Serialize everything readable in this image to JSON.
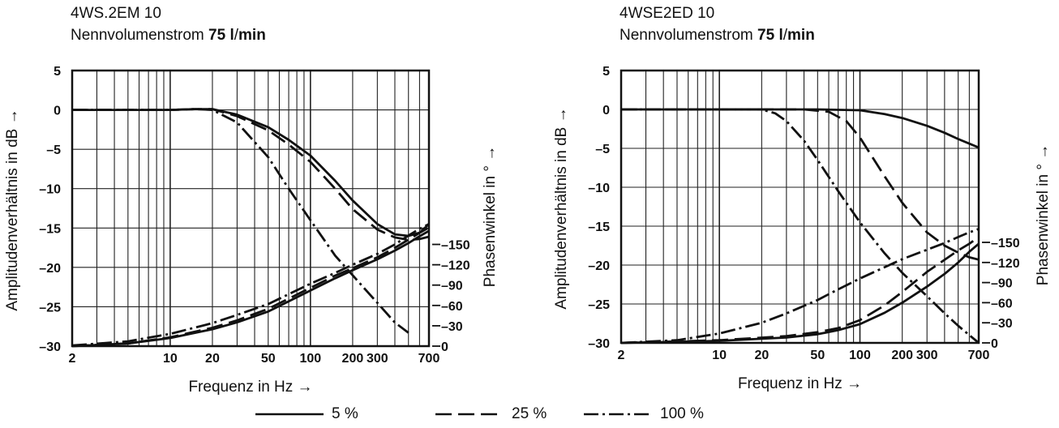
{
  "chart_data": [
    {
      "type": "line",
      "title_line1": "4WS.2EM 10",
      "title_line2_prefix": "Nennvolumenstrom ",
      "title_line2_bold": "75 l",
      "title_line2_sep": "/",
      "title_line2_bold2": "min",
      "xlabel": "Frequenz in Hz →",
      "ylabel": "Amplitudenverhältnis in dB →",
      "y2label": "Phasenwinkel in ° →",
      "xscale": "log",
      "xlim": [
        2,
        700
      ],
      "ylim": [
        -30,
        5
      ],
      "y2lim": [
        0,
        180
      ],
      "xticks": [
        2,
        10,
        20,
        50,
        100,
        200,
        300,
        700
      ],
      "yticks": [
        5,
        0,
        -5,
        -10,
        -15,
        -20,
        -25,
        -30
      ],
      "y2ticks": [
        150,
        120,
        90,
        60,
        30,
        0
      ],
      "series": [
        {
          "name": "5 %",
          "kind": "amplitude",
          "x": [
            2,
            10,
            15,
            20,
            30,
            50,
            70,
            100,
            150,
            200,
            300,
            400,
            500,
            600,
            700
          ],
          "y": [
            0,
            0,
            0.1,
            0.1,
            -0.6,
            -2.2,
            -3.8,
            -5.8,
            -9,
            -11.5,
            -14.5,
            -15.8,
            -16,
            -15.6,
            -14.5
          ]
        },
        {
          "name": "25 %",
          "kind": "amplitude",
          "x": [
            2,
            10,
            15,
            20,
            30,
            50,
            70,
            100,
            150,
            200,
            300,
            400,
            500,
            600,
            700
          ],
          "y": [
            0,
            0,
            0.1,
            0.1,
            -0.8,
            -2.6,
            -4.4,
            -6.6,
            -10,
            -12.6,
            -15.2,
            -16.2,
            -16.5,
            -16.4,
            -16.1
          ]
        },
        {
          "name": "100 %",
          "kind": "amplitude",
          "x": [
            2,
            10,
            15,
            20,
            30,
            50,
            70,
            100,
            150,
            200,
            300,
            400,
            500
          ],
          "y": [
            0,
            0,
            0.1,
            0,
            -1.6,
            -6,
            -10,
            -14,
            -18.5,
            -21,
            -24.5,
            -27,
            -28.3
          ]
        },
        {
          "name": "5 %",
          "kind": "phase",
          "x": [
            2,
            5,
            10,
            20,
            30,
            50,
            100,
            150,
            200,
            300,
            400,
            500,
            600,
            700
          ],
          "y": [
            0,
            4,
            12,
            25,
            35,
            51,
            82,
            100,
            112,
            128,
            141,
            152,
            162,
            170
          ]
        },
        {
          "name": "25 %",
          "kind": "phase",
          "x": [
            2,
            5,
            10,
            20,
            30,
            50,
            100,
            150,
            200,
            300,
            400,
            500,
            600,
            700
          ],
          "y": [
            0,
            4,
            13,
            27,
            38,
            55,
            86,
            104,
            115,
            131,
            145,
            157,
            167,
            175
          ]
        },
        {
          "name": "100 %",
          "kind": "phase",
          "x": [
            2,
            5,
            10,
            20,
            30,
            50,
            100,
            150,
            200,
            300,
            400,
            500,
            600,
            700
          ],
          "y": [
            1,
            7,
            18,
            34,
            46,
            62,
            92,
            108,
            120,
            136,
            150,
            163,
            173,
            180
          ]
        }
      ]
    },
    {
      "type": "line",
      "title_line1": "4WSE2ED 10",
      "title_line2_prefix": "Nennvolumenstrom ",
      "title_line2_bold": "75 l",
      "title_line2_sep": "/",
      "title_line2_bold2": "min",
      "xlabel": "Frequenz in Hz →",
      "ylabel": "Amplitudenverhältnis in dB →",
      "y2label": "Phasenwinkel in ° →",
      "xscale": "log",
      "xlim": [
        2,
        700
      ],
      "ylim": [
        -30,
        5
      ],
      "y2lim": [
        0,
        180
      ],
      "xticks": [
        2,
        10,
        20,
        50,
        100,
        200,
        300,
        700
      ],
      "yticks": [
        5,
        0,
        -5,
        -10,
        -15,
        -20,
        -25,
        -30
      ],
      "y2ticks": [
        150,
        120,
        90,
        60,
        30,
        0
      ],
      "series": [
        {
          "name": "5 %",
          "kind": "amplitude",
          "x": [
            2,
            50,
            100,
            150,
            200,
            300,
            400,
            500,
            600,
            700
          ],
          "y": [
            0,
            0,
            -0.1,
            -0.6,
            -1.1,
            -2.1,
            -3,
            -3.8,
            -4.4,
            -4.9
          ]
        },
        {
          "name": "25 %",
          "kind": "amplitude",
          "x": [
            2,
            40,
            60,
            80,
            100,
            150,
            200,
            300,
            400,
            500,
            600,
            700
          ],
          "y": [
            0,
            0,
            -0.3,
            -1.5,
            -3.6,
            -8.6,
            -12,
            -15.8,
            -17.5,
            -18.4,
            -19,
            -19.3
          ]
        },
        {
          "name": "100 %",
          "kind": "amplitude",
          "x": [
            2,
            20,
            25,
            30,
            40,
            50,
            70,
            100,
            150,
            200,
            300,
            400,
            500,
            600,
            700
          ],
          "y": [
            0,
            0,
            -0.5,
            -1.5,
            -4,
            -6.5,
            -10.5,
            -14.5,
            -18.5,
            -21,
            -24,
            -26.2,
            -27.8,
            -29,
            -30
          ]
        },
        {
          "name": "5 %",
          "kind": "phase",
          "x": [
            2,
            10,
            30,
            50,
            70,
            100,
            150,
            200,
            300,
            400,
            500,
            600,
            700
          ],
          "y": [
            0,
            3,
            8,
            13,
            19,
            28,
            45,
            60,
            84,
            103,
            120,
            136,
            148
          ]
        },
        {
          "name": "25 %",
          "kind": "phase",
          "x": [
            2,
            10,
            30,
            50,
            70,
            100,
            150,
            200,
            300,
            400,
            500,
            600,
            700
          ],
          "y": [
            0,
            4,
            10,
            16,
            22,
            34,
            56,
            76,
            106,
            124,
            138,
            148,
            158
          ]
        },
        {
          "name": "100 %",
          "kind": "phase",
          "x": [
            2,
            5,
            10,
            20,
            30,
            50,
            70,
            100,
            150,
            200,
            300,
            400,
            500,
            600,
            700
          ],
          "y": [
            0,
            4,
            14,
            30,
            44,
            64,
            80,
            96,
            113,
            125,
            139,
            149,
            158,
            165,
            170
          ]
        }
      ]
    }
  ],
  "legend": [
    {
      "label": "5 %",
      "style": "solid"
    },
    {
      "label": "25 %",
      "style": "dashed"
    },
    {
      "label": "100 %",
      "style": "dashdot"
    }
  ]
}
